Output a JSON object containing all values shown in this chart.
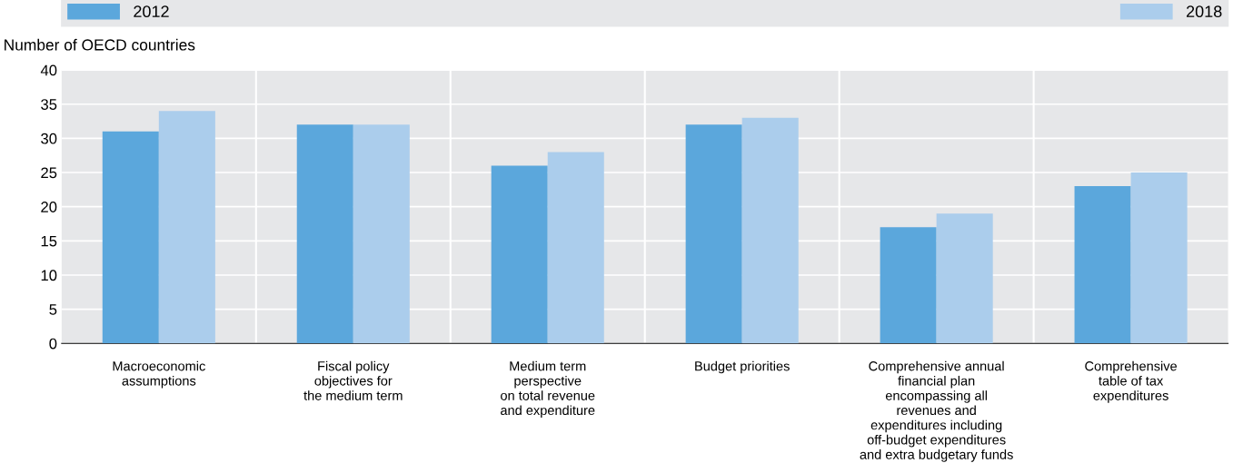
{
  "chart_data": {
    "type": "bar",
    "ylabel": "Number of OECD countries",
    "categories": [
      "Macroeconomic\nassumptions",
      "Fiscal policy\nobjectives for\nthe medium term",
      "Medium term\nperspective\non total revenue\nand expenditure",
      "Budget priorities",
      "Comprehensive annual\nfinancial plan\nencompassing all\nrevenues and\nexpenditures including\noff-budget expenditures\nand extra budgetary funds",
      "Comprehensive\ntable of tax\nexpenditures"
    ],
    "series": [
      {
        "name": "2012",
        "color": "#5ba7dc",
        "values": [
          31,
          32,
          26,
          32,
          17,
          23
        ]
      },
      {
        "name": "2018",
        "color": "#abcdec",
        "values": [
          34,
          32,
          28,
          33,
          19,
          25
        ]
      }
    ],
    "ylim": [
      0,
      40
    ],
    "yticks": [
      0,
      5,
      10,
      15,
      20,
      25,
      30,
      35,
      40
    ],
    "grid": true,
    "legend": "top"
  }
}
